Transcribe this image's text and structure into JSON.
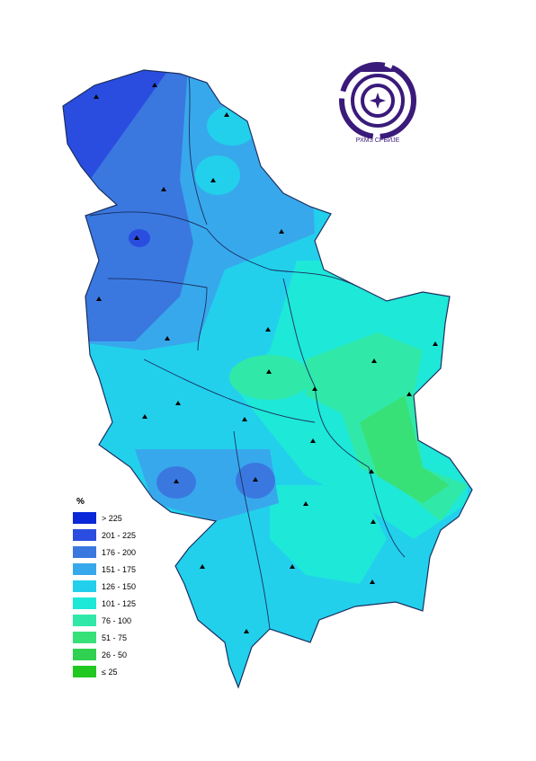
{
  "logo": {
    "text": "РХМЗ СРБИЈЕ"
  },
  "legend": {
    "title": "%",
    "items": [
      {
        "label": "> 225",
        "color": "#0a28d8"
      },
      {
        "label": "201 - 225",
        "color": "#2a4de0"
      },
      {
        "label": "176 - 200",
        "color": "#3a78e0"
      },
      {
        "label": "151 - 175",
        "color": "#38a8ec"
      },
      {
        "label": "126 - 150",
        "color": "#22d0ec"
      },
      {
        "label": "101 - 125",
        "color": "#1ee8d8"
      },
      {
        "label": "76 - 100",
        "color": "#30e8a8"
      },
      {
        "label": "51 - 75",
        "color": "#38e078"
      },
      {
        "label": "26 - 50",
        "color": "#30d050"
      },
      {
        "label": "≤ 25",
        "color": "#20c820"
      }
    ]
  }
}
